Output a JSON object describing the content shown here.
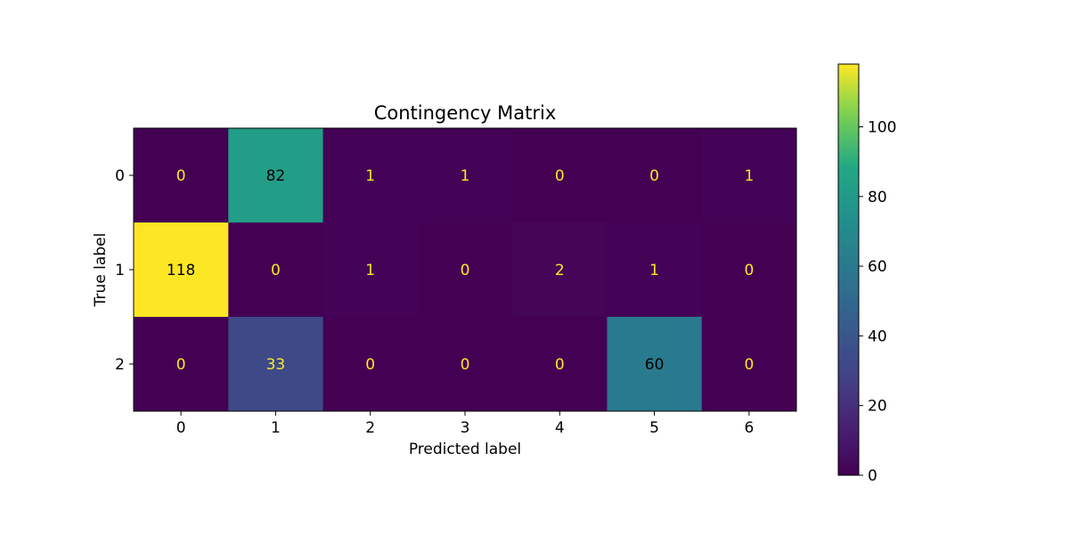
{
  "chart_data": {
    "type": "heatmap",
    "title": "Contingency Matrix",
    "xlabel": "Predicted label",
    "ylabel": "True label",
    "x_categories": [
      "0",
      "1",
      "2",
      "3",
      "4",
      "5",
      "6"
    ],
    "y_categories": [
      "0",
      "1",
      "2"
    ],
    "values": [
      [
        0,
        82,
        1,
        1,
        0,
        0,
        1
      ],
      [
        118,
        0,
        1,
        0,
        2,
        1,
        0
      ],
      [
        0,
        33,
        0,
        0,
        0,
        60,
        0
      ]
    ],
    "colorbar": {
      "min": 0,
      "max": 118,
      "ticks": [
        0,
        20,
        40,
        60,
        80,
        100
      ],
      "colormap": "viridis"
    },
    "grid": false
  }
}
